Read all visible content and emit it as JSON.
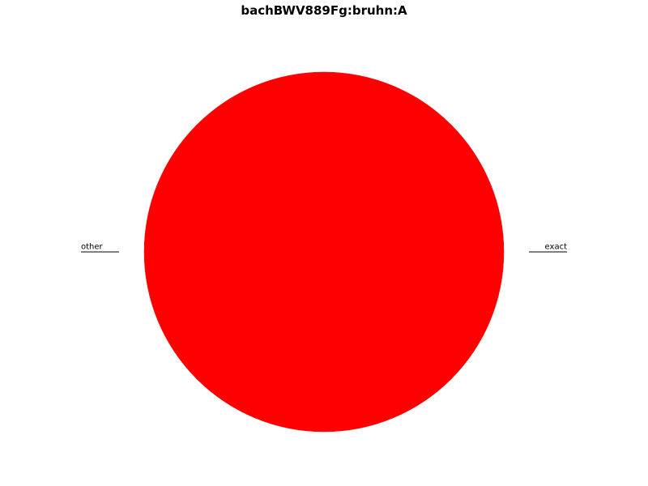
{
  "chart_data": {
    "type": "pie",
    "title": "bachBWV889Fg:bruhn:A",
    "slices": [
      {
        "label": "exact",
        "value": 0.0001,
        "color": "#ff0000"
      },
      {
        "label": "other",
        "value": 99.9999,
        "color": "#ff0000"
      }
    ],
    "legend": "none",
    "grid": false
  }
}
